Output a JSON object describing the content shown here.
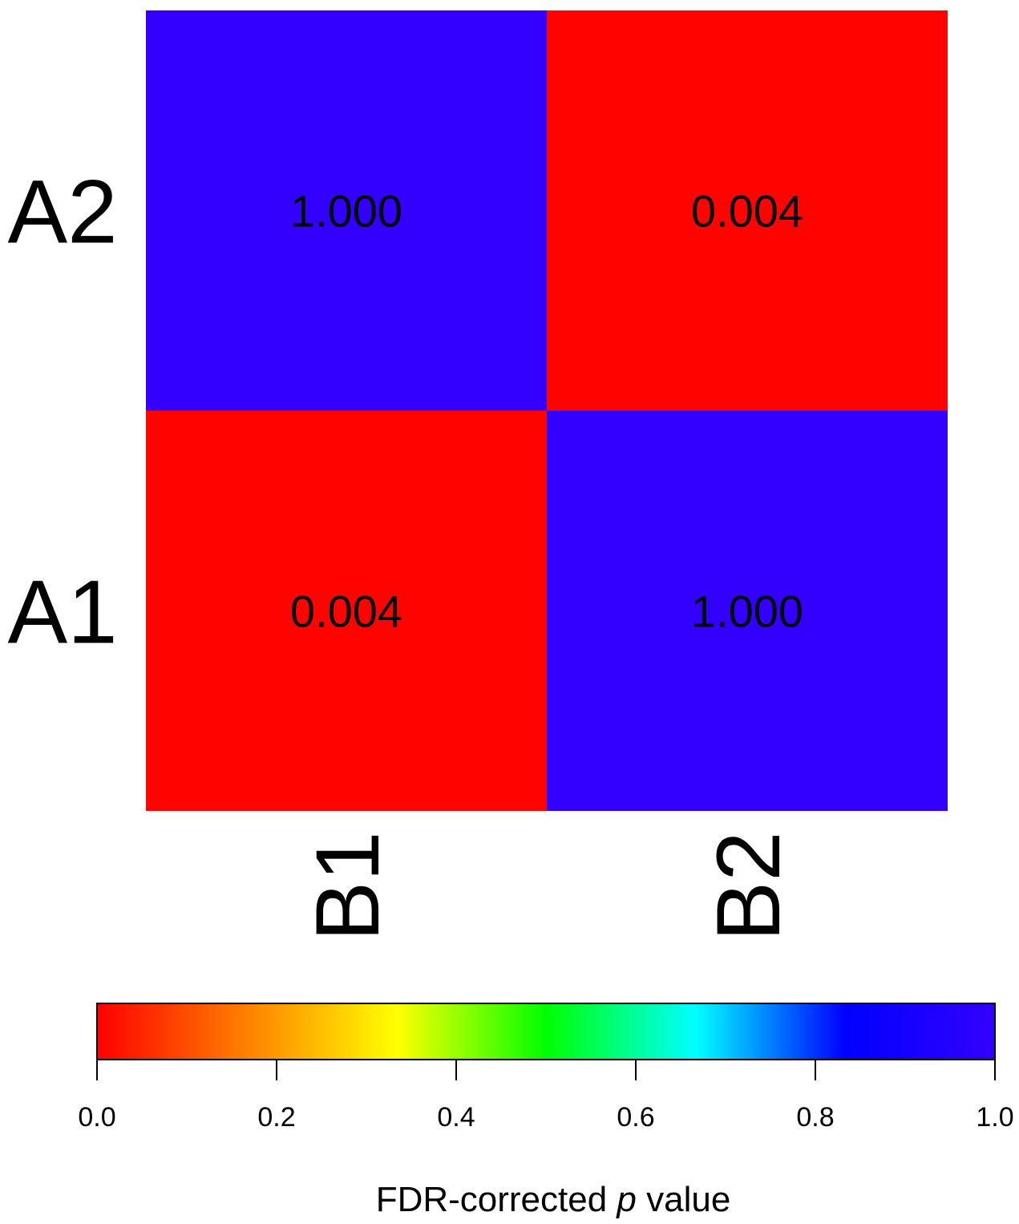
{
  "chart_data": {
    "type": "heatmap",
    "rows": [
      "A2",
      "A1"
    ],
    "columns": [
      "B1",
      "B2"
    ],
    "values": [
      [
        1.0,
        0.004
      ],
      [
        0.004,
        1.0
      ]
    ],
    "cell_labels": [
      [
        "1.000",
        "0.004"
      ],
      [
        "0.004",
        "1.000"
      ]
    ],
    "colorbar": {
      "range": [
        0.0,
        1.0
      ],
      "ticks": [
        0.0,
        0.2,
        0.4,
        0.6,
        0.8,
        1.0
      ],
      "tick_labels": [
        "0.0",
        "0.2",
        "0.4",
        "0.6",
        "0.8",
        "1.0"
      ],
      "title_prefix": "FDR-corrected ",
      "title_italic": "p",
      "title_suffix": " value",
      "colors": [
        "#ff0000",
        "#ff8000",
        "#ffff00",
        "#00ff00",
        "#00ffff",
        "#0000ff",
        "#3300ff"
      ]
    },
    "grid": false
  }
}
